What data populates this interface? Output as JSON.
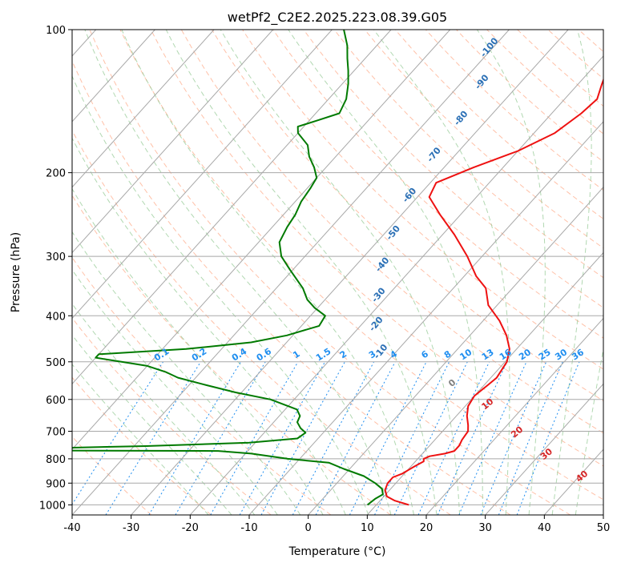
{
  "chart_data": {
    "type": "line",
    "chart_kind": "skew-T log-p diagram",
    "title": "wetPf2_C2E2.2025.223.08.39.G05",
    "xlabel": "Temperature (°C)",
    "ylabel": "Pressure (hPa)",
    "xlim": [
      -40,
      50
    ],
    "ylim": [
      1050,
      100
    ],
    "y_scale": "log",
    "grid": true,
    "x_ticks": [
      "-40",
      "-30",
      "-20",
      "-10",
      "0",
      "10",
      "20",
      "30",
      "40",
      "50"
    ],
    "y_ticks": [
      "100",
      "200",
      "300",
      "400",
      "500",
      "600",
      "700",
      "800",
      "900",
      "1000"
    ],
    "series": [
      {
        "key": "temperature",
        "color": "#ee1111",
        "points": [
          [
            1000,
            15.5
          ],
          [
            980,
            12.5
          ],
          [
            960,
            10.5
          ],
          [
            930,
            9.2
          ],
          [
            900,
            8.6
          ],
          [
            875,
            8.6
          ],
          [
            860,
            9.6
          ],
          [
            830,
            10.6
          ],
          [
            810,
            11.4
          ],
          [
            800,
            11.0
          ],
          [
            790,
            11.6
          ],
          [
            780,
            13.8
          ],
          [
            770,
            15.0
          ],
          [
            750,
            15.0
          ],
          [
            730,
            14.6
          ],
          [
            700,
            14.3
          ],
          [
            680,
            13.4
          ],
          [
            650,
            11.8
          ],
          [
            620,
            10.5
          ],
          [
            590,
            10.0
          ],
          [
            560,
            10.6
          ],
          [
            540,
            11.0
          ],
          [
            500,
            10.3
          ],
          [
            470,
            8.8
          ],
          [
            440,
            6.2
          ],
          [
            410,
            2.8
          ],
          [
            380,
            -1.5
          ],
          [
            350,
            -4.5
          ],
          [
            330,
            -8.0
          ],
          [
            300,
            -12.5
          ],
          [
            270,
            -18.0
          ],
          [
            245,
            -23.5
          ],
          [
            225,
            -28.0
          ],
          [
            210,
            -29.0
          ],
          [
            195,
            -25.0
          ],
          [
            180,
            -20.0
          ],
          [
            165,
            -16.5
          ],
          [
            150,
            -15.0
          ],
          [
            140,
            -14.5
          ],
          [
            130,
            -16.0
          ],
          [
            120,
            -17.5
          ],
          [
            115,
            -17.5
          ],
          [
            110,
            -18.5
          ],
          [
            100,
            -20.0
          ]
        ]
      },
      {
        "key": "dewpoint",
        "color": "#007a00",
        "points": [
          [
            1000,
            8.5
          ],
          [
            970,
            8.9
          ],
          [
            950,
            9.5
          ],
          [
            925,
            8.5
          ],
          [
            900,
            6.5
          ],
          [
            870,
            3.5
          ],
          [
            840,
            -1.0
          ],
          [
            815,
            -4.5
          ],
          [
            800,
            -12.0
          ],
          [
            780,
            -19.0
          ],
          [
            770,
            -25.0
          ],
          [
            768,
            -60.0
          ],
          [
            760,
            -55.0
          ],
          [
            752,
            -38.0
          ],
          [
            740,
            -21.0
          ],
          [
            725,
            -13.5
          ],
          [
            705,
            -13.0
          ],
          [
            690,
            -14.5
          ],
          [
            670,
            -16.0
          ],
          [
            650,
            -16.5
          ],
          [
            630,
            -18.0
          ],
          [
            600,
            -24.0
          ],
          [
            580,
            -31.0
          ],
          [
            560,
            -37.0
          ],
          [
            540,
            -43.0
          ],
          [
            525,
            -46.0
          ],
          [
            510,
            -50.0
          ],
          [
            500,
            -55.0
          ],
          [
            490,
            -60.0
          ],
          [
            482,
            -60.0
          ],
          [
            470,
            -46.0
          ],
          [
            455,
            -36.0
          ],
          [
            440,
            -31.0
          ],
          [
            420,
            -27.0
          ],
          [
            400,
            -27.5
          ],
          [
            385,
            -30.5
          ],
          [
            370,
            -33.0
          ],
          [
            350,
            -35.5
          ],
          [
            320,
            -40.5
          ],
          [
            300,
            -44.0
          ],
          [
            280,
            -46.5
          ],
          [
            260,
            -47.5
          ],
          [
            245,
            -48.0
          ],
          [
            230,
            -49.0
          ],
          [
            215,
            -49.5
          ],
          [
            205,
            -50.0
          ],
          [
            195,
            -52.0
          ],
          [
            185,
            -54.5
          ],
          [
            175,
            -56.5
          ],
          [
            165,
            -60.0
          ],
          [
            160,
            -61.0
          ],
          [
            155,
            -58.5
          ],
          [
            150,
            -56.0
          ],
          [
            140,
            -57.0
          ],
          [
            130,
            -59.0
          ],
          [
            122,
            -61.0
          ],
          [
            115,
            -63.0
          ],
          [
            108,
            -65.0
          ],
          [
            100,
            -68.0
          ]
        ]
      }
    ],
    "mixing_ratio_labels": [
      "0.1",
      "0.2",
      "0.4",
      "0.6",
      "1",
      "1.5",
      "2",
      "3",
      "4",
      "6",
      "8",
      "10",
      "13",
      "16",
      "20",
      "25",
      "30",
      "36"
    ],
    "dry_adiabat_labels": [
      "-100",
      "-90",
      "-80",
      "-70",
      "-60",
      "-50",
      "-40",
      "-30",
      "-20",
      "-10"
    ],
    "moist_adiabat_labels": [
      "0",
      "10",
      "20",
      "30",
      "40"
    ],
    "colors": {
      "isotherm": "#a8a8a8",
      "isobar": "#a8a8a8",
      "dry_adiabat": "#ffa07a",
      "moist_adiabat": "#90c890",
      "mixing_ratio": "#1f8ef0",
      "adiabat_label": "#2a6fb5",
      "moist_label_zero": "#808080",
      "moist_label_warm": "#d62728"
    }
  }
}
